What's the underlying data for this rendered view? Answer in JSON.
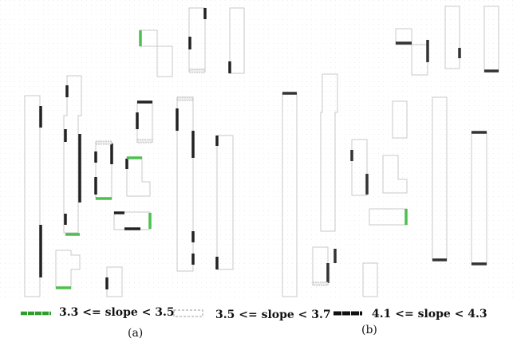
{
  "legend": {
    "items": [
      {
        "label": "3.3 <= slope < 3.5",
        "color": "#3fbf3f",
        "style": "solid-green"
      },
      {
        "label": "3.5 <= slope < 3.7",
        "color": "#bbbbbb",
        "style": "dashed-gray"
      },
      {
        "label": "4.1 <= slope < 4.3",
        "color": "#111111",
        "style": "solid-black"
      }
    ]
  },
  "captions": {
    "a": "(a)",
    "b": "(b)"
  },
  "colors": {
    "outline": "#c8c8c8",
    "green": "#4cc04c",
    "dark": "#222222",
    "grid": "#f1f1f1"
  }
}
